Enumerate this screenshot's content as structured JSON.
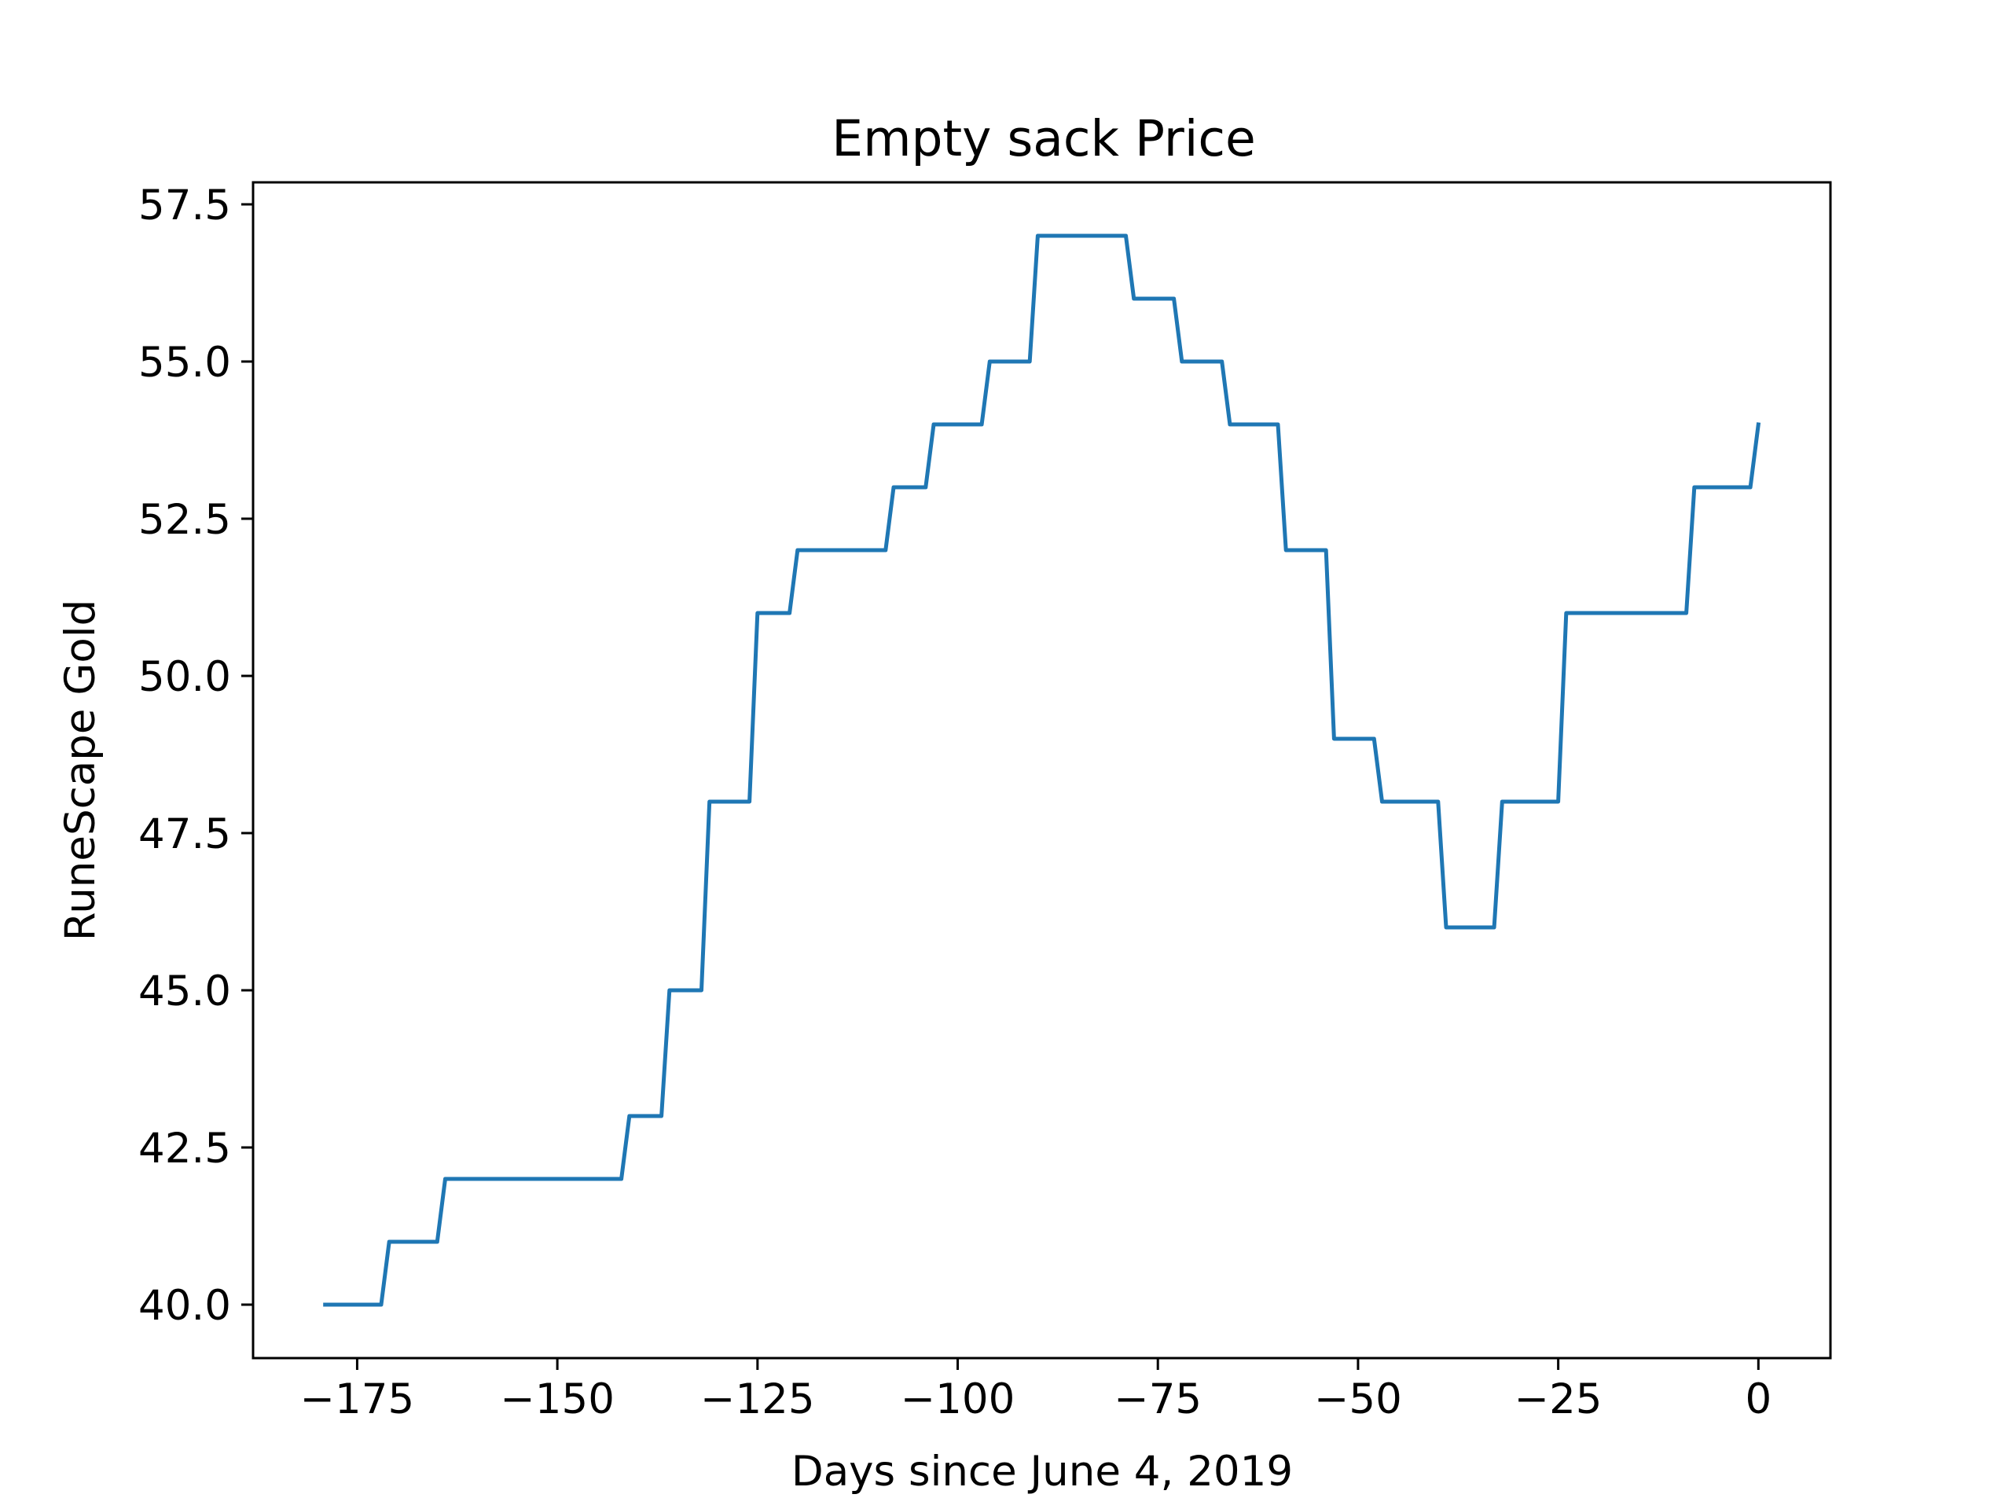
{
  "chart_data": {
    "type": "line",
    "title": "Empty sack Price",
    "xlabel": "Days since June 4, 2019",
    "ylabel": "RuneScape Gold",
    "xlim": [
      -188,
      9
    ],
    "ylim": [
      39.15,
      57.85
    ],
    "xticks": [
      -175,
      -150,
      -125,
      -100,
      -75,
      -50,
      -25,
      0
    ],
    "xtick_labels": [
      "−175",
      "−150",
      "−125",
      "−100",
      "−75",
      "−50",
      "−25",
      "0"
    ],
    "yticks": [
      40.0,
      42.5,
      45.0,
      47.5,
      50.0,
      52.5,
      55.0,
      57.5
    ],
    "ytick_labels": [
      "40.0",
      "42.5",
      "45.0",
      "47.5",
      "50.0",
      "52.5",
      "55.0",
      "57.5"
    ],
    "grid": false,
    "series": [
      {
        "color": "#1f77b4",
        "x": [
          -179,
          -172,
          -171,
          -165,
          -164,
          -142,
          -141,
          -137,
          -136,
          -132,
          -131,
          -126,
          -125,
          -121,
          -120,
          -109,
          -108,
          -104,
          -103,
          -97,
          -96,
          -91,
          -90,
          -79,
          -78,
          -73,
          -72,
          -67,
          -66,
          -60,
          -59,
          -54,
          -53,
          -48,
          -47,
          -40,
          -39,
          -33,
          -32,
          -25,
          -24,
          -9,
          -8,
          -1,
          0
        ],
        "y": [
          40,
          40,
          41,
          41,
          42,
          42,
          43,
          43,
          45,
          45,
          48,
          48,
          51,
          51,
          52,
          52,
          53,
          53,
          54,
          54,
          55,
          55,
          57,
          57,
          56,
          56,
          55,
          55,
          54,
          54,
          52,
          52,
          49,
          49,
          48,
          48,
          46,
          46,
          48,
          48,
          51,
          51,
          53,
          53,
          54
        ]
      }
    ]
  }
}
